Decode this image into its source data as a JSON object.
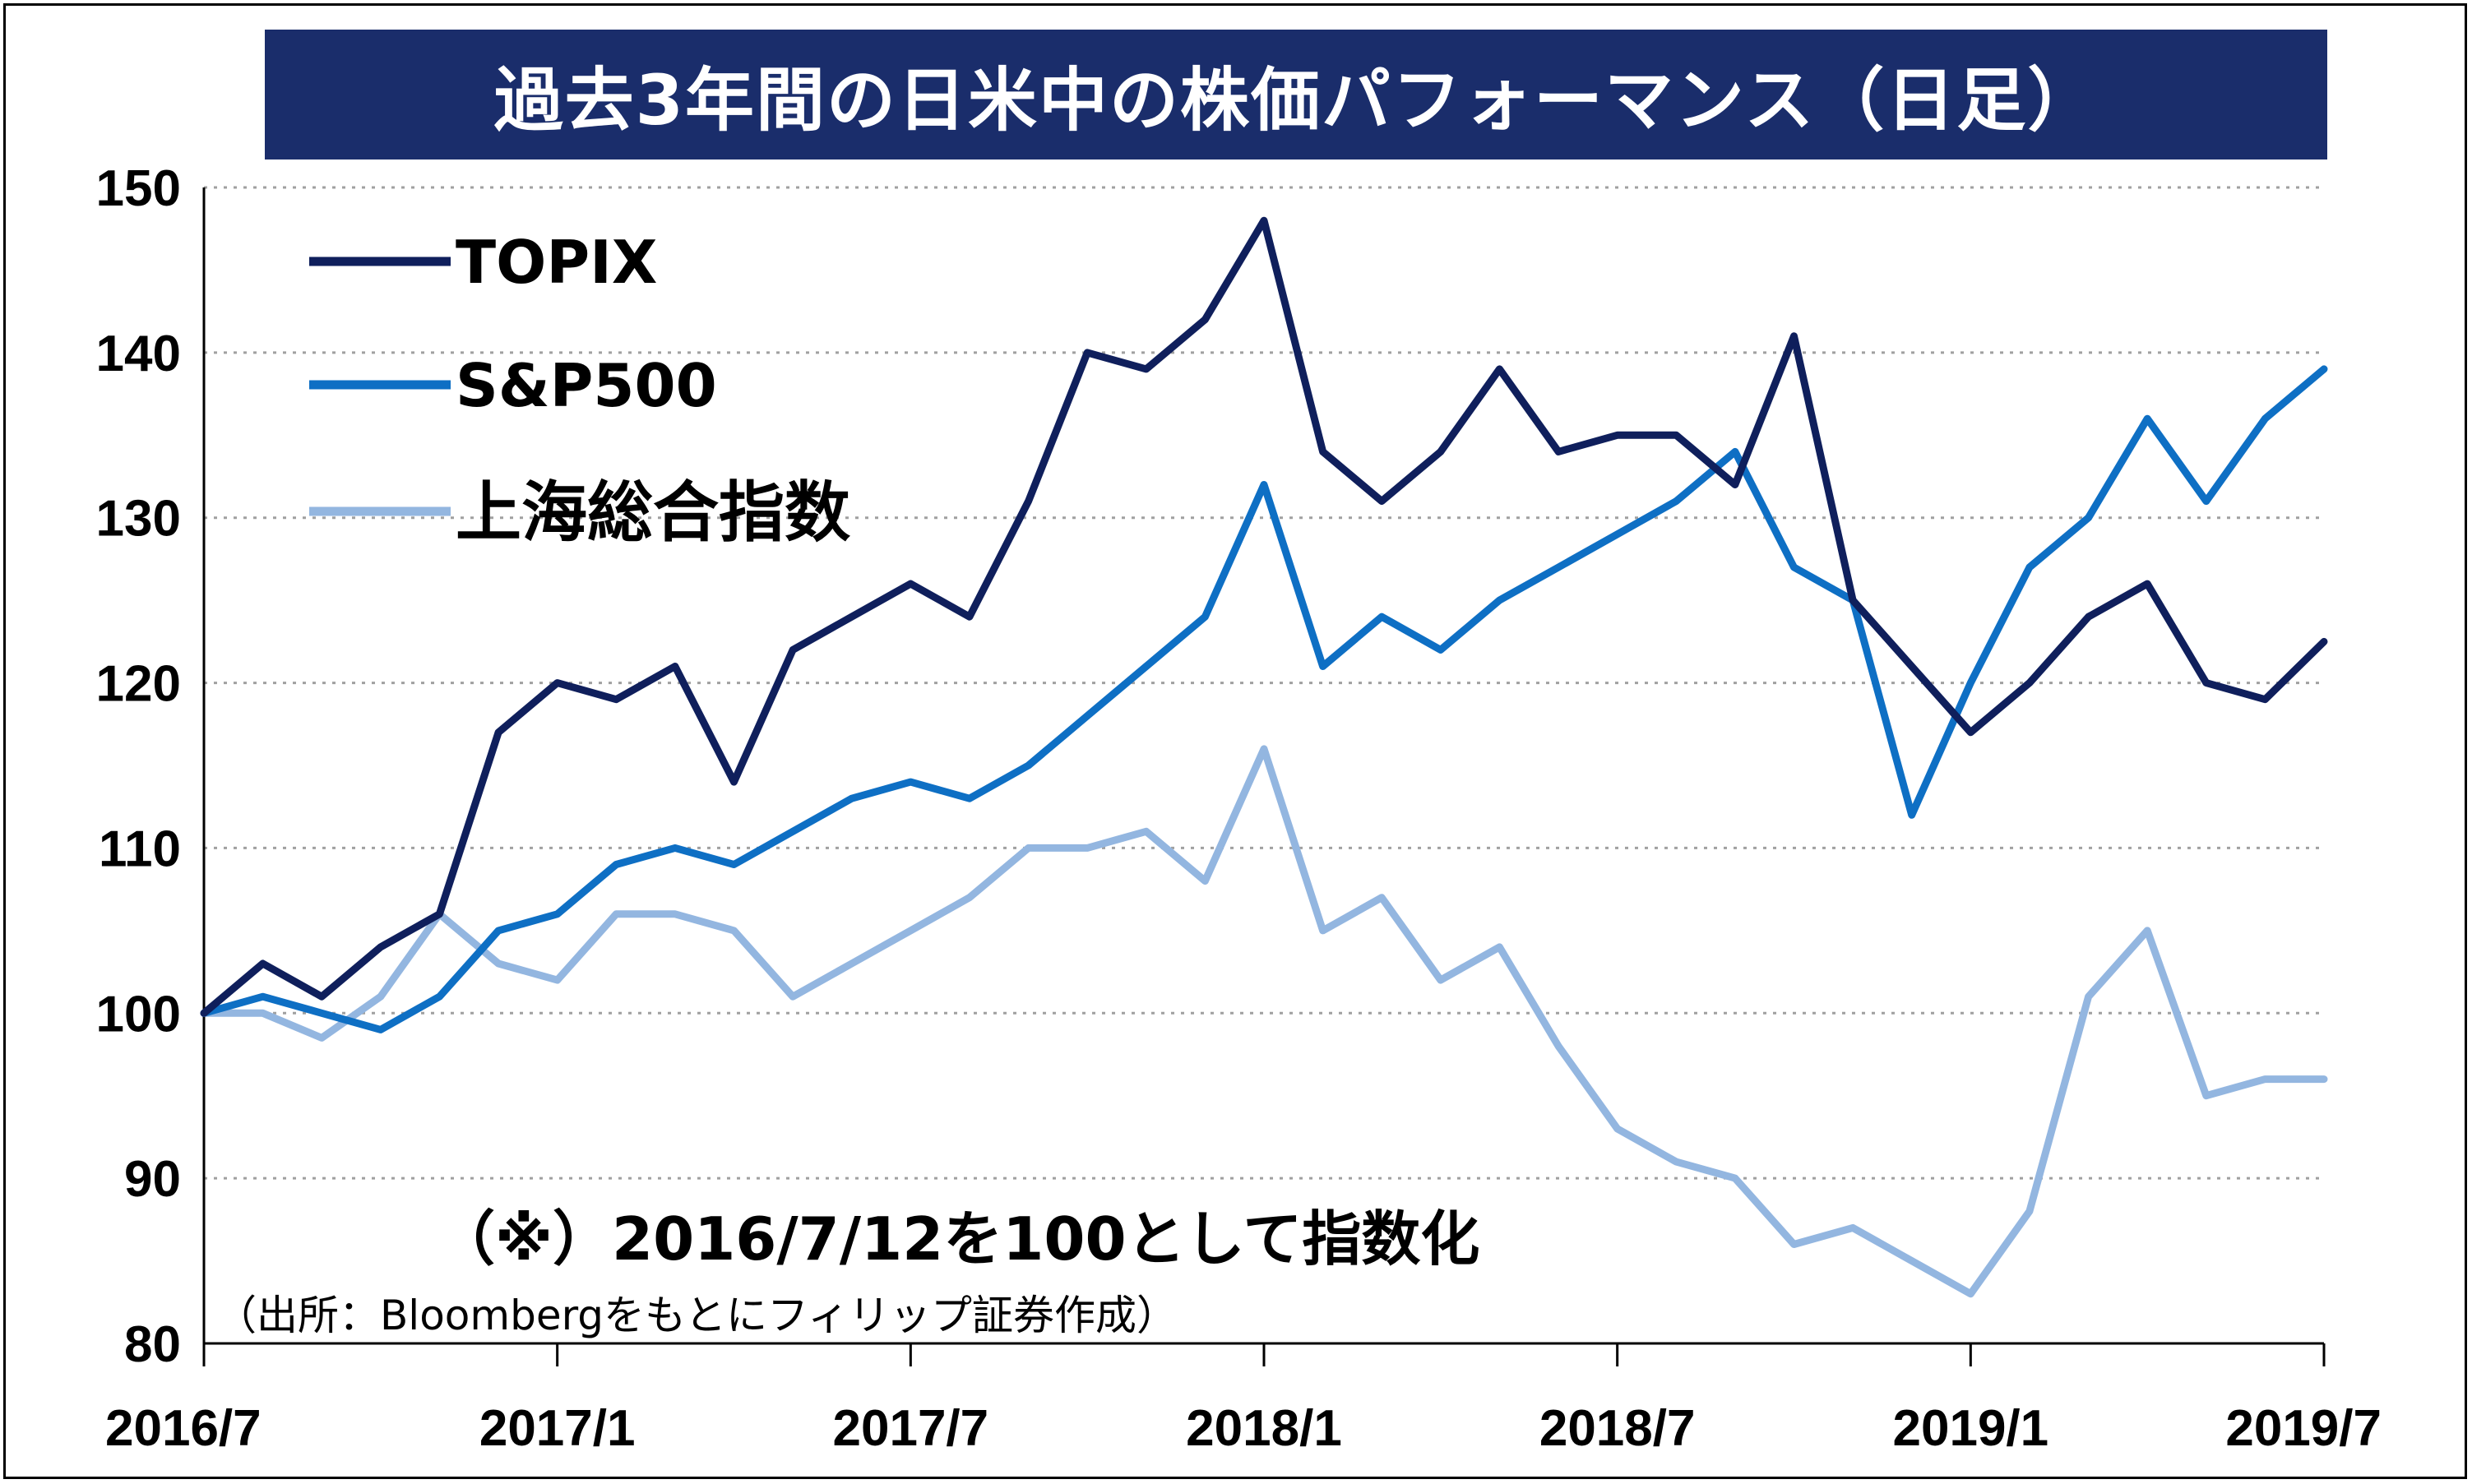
{
  "title": "過去3年間の日米中の株価パフォーマンス（日足）",
  "note": "（※）2016/7/12を100として指数化",
  "source": "（出所：Bloombergをもとにフィリップ証券作成）",
  "chart_data": {
    "type": "line",
    "title": "過去3年間の日米中の株価パフォーマンス（日足）",
    "x_ticks": [
      "2016/7",
      "2017/1",
      "2017/7",
      "2018/1",
      "2018/7",
      "2019/1",
      "2019/7"
    ],
    "x_range": [
      "2016/7",
      "2019/7"
    ],
    "ylim": [
      80,
      150
    ],
    "y_ticks": [
      80,
      90,
      100,
      110,
      120,
      130,
      140,
      150
    ],
    "grid": "horizontal dotted",
    "legend_position": "top-left",
    "series": [
      {
        "name": "TOPIX",
        "color": "#0f1f5c",
        "points": [
          [
            "2016/7",
            100
          ],
          [
            "2016/8",
            103
          ],
          [
            "2016/9",
            101
          ],
          [
            "2016/10",
            104
          ],
          [
            "2016/11",
            106
          ],
          [
            "2016/12",
            117
          ],
          [
            "2017/1",
            120
          ],
          [
            "2017/2",
            119
          ],
          [
            "2017/3",
            121
          ],
          [
            "2017/4",
            114
          ],
          [
            "2017/5",
            122
          ],
          [
            "2017/6",
            124
          ],
          [
            "2017/7",
            126
          ],
          [
            "2017/8",
            124
          ],
          [
            "2017/9",
            131
          ],
          [
            "2017/10",
            140
          ],
          [
            "2017/11",
            139
          ],
          [
            "2017/12",
            142
          ],
          [
            "2018/1",
            148
          ],
          [
            "2018/2",
            134
          ],
          [
            "2018/3",
            131
          ],
          [
            "2018/4",
            134
          ],
          [
            "2018/5",
            139
          ],
          [
            "2018/6",
            134
          ],
          [
            "2018/7",
            135
          ],
          [
            "2018/8",
            135
          ],
          [
            "2018/9",
            132
          ],
          [
            "2018/10",
            141
          ],
          [
            "2018/11",
            125
          ],
          [
            "2018/12",
            121
          ],
          [
            "2019/1",
            117
          ],
          [
            "2019/2",
            120
          ],
          [
            "2019/3",
            124
          ],
          [
            "2019/4",
            126
          ],
          [
            "2019/5",
            120
          ],
          [
            "2019/6",
            119
          ],
          [
            "2019/7",
            122.5
          ]
        ]
      },
      {
        "name": "S&P500",
        "color": "#0e6fc4",
        "points": [
          [
            "2016/7",
            100
          ],
          [
            "2016/8",
            101
          ],
          [
            "2016/9",
            100
          ],
          [
            "2016/10",
            99
          ],
          [
            "2016/11",
            101
          ],
          [
            "2016/12",
            105
          ],
          [
            "2017/1",
            106
          ],
          [
            "2017/2",
            109
          ],
          [
            "2017/3",
            110
          ],
          [
            "2017/4",
            109
          ],
          [
            "2017/5",
            111
          ],
          [
            "2017/6",
            113
          ],
          [
            "2017/7",
            114
          ],
          [
            "2017/8",
            113
          ],
          [
            "2017/9",
            115
          ],
          [
            "2017/10",
            118
          ],
          [
            "2017/11",
            121
          ],
          [
            "2017/12",
            124
          ],
          [
            "2018/1",
            132
          ],
          [
            "2018/2",
            121
          ],
          [
            "2018/3",
            124
          ],
          [
            "2018/4",
            122
          ],
          [
            "2018/5",
            125
          ],
          [
            "2018/6",
            127
          ],
          [
            "2018/7",
            129
          ],
          [
            "2018/8",
            131
          ],
          [
            "2018/9",
            134
          ],
          [
            "2018/10",
            127
          ],
          [
            "2018/11",
            125
          ],
          [
            "2018/12",
            112
          ],
          [
            "2019/1",
            120
          ],
          [
            "2019/2",
            127
          ],
          [
            "2019/3",
            130
          ],
          [
            "2019/4",
            136
          ],
          [
            "2019/5",
            131
          ],
          [
            "2019/6",
            136
          ],
          [
            "2019/7",
            139
          ]
        ]
      },
      {
        "name": "上海総合指数",
        "color": "#93b6e0",
        "points": [
          [
            "2016/7",
            100
          ],
          [
            "2016/8",
            100
          ],
          [
            "2016/9",
            98.5
          ],
          [
            "2016/10",
            101
          ],
          [
            "2016/11",
            106
          ],
          [
            "2016/12",
            103
          ],
          [
            "2017/1",
            102
          ],
          [
            "2017/2",
            106
          ],
          [
            "2017/3",
            106
          ],
          [
            "2017/4",
            105
          ],
          [
            "2017/5",
            101
          ],
          [
            "2017/6",
            103
          ],
          [
            "2017/7",
            105
          ],
          [
            "2017/8",
            107
          ],
          [
            "2017/9",
            110
          ],
          [
            "2017/10",
            110
          ],
          [
            "2017/11",
            111
          ],
          [
            "2017/12",
            108
          ],
          [
            "2018/1",
            116
          ],
          [
            "2018/2",
            105
          ],
          [
            "2018/3",
            107
          ],
          [
            "2018/4",
            102
          ],
          [
            "2018/5",
            104
          ],
          [
            "2018/6",
            98
          ],
          [
            "2018/7",
            93
          ],
          [
            "2018/8",
            91
          ],
          [
            "2018/9",
            90
          ],
          [
            "2018/10",
            86
          ],
          [
            "2018/11",
            87
          ],
          [
            "2018/12",
            85
          ],
          [
            "2019/1",
            83
          ],
          [
            "2019/2",
            88
          ],
          [
            "2019/3",
            101
          ],
          [
            "2019/4",
            105
          ],
          [
            "2019/5",
            95
          ],
          [
            "2019/6",
            96
          ],
          [
            "2019/7",
            96
          ]
        ]
      }
    ]
  }
}
